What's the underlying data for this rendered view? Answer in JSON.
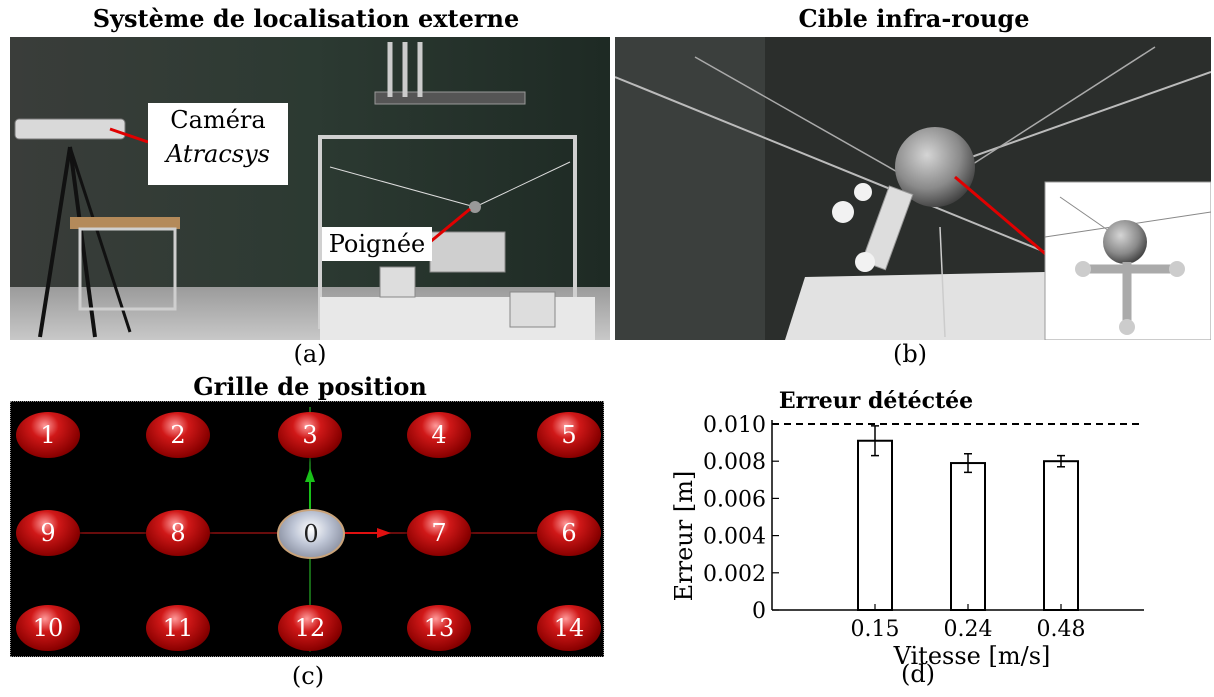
{
  "panels": {
    "a": {
      "title": "Système de localisation externe",
      "caption": "(a)",
      "label_camera_line1": "Caméra",
      "label_camera_line2": "Atracsys",
      "label_handle": "Poignée"
    },
    "b": {
      "title": "Cible infra-rouge",
      "caption": "(b)"
    },
    "c": {
      "title": "Grille de position",
      "caption": "(c)",
      "positions": [
        "1",
        "2",
        "3",
        "4",
        "5",
        "9",
        "8",
        "0",
        "7",
        "6",
        "10",
        "11",
        "12",
        "13",
        "14"
      ]
    },
    "d": {
      "caption": "(d)"
    }
  },
  "chart_data": {
    "type": "bar",
    "title": "Erreur détéctée",
    "xlabel": "Vitesse [m/s]",
    "ylabel": "Erreur [m]",
    "categories": [
      "0.15",
      "0.24",
      "0.48"
    ],
    "values": [
      0.0091,
      0.0079,
      0.008
    ],
    "error": [
      0.0008,
      0.0005,
      0.0003
    ],
    "ylim": [
      0,
      0.01
    ],
    "yticks": [
      "0",
      "0.002",
      "0.004",
      "0.006",
      "0.008",
      "0.010"
    ],
    "threshold": 0.01,
    "grid": false,
    "colors": {
      "bar_fill": "#ffffff",
      "bar_stroke": "#000000"
    }
  }
}
